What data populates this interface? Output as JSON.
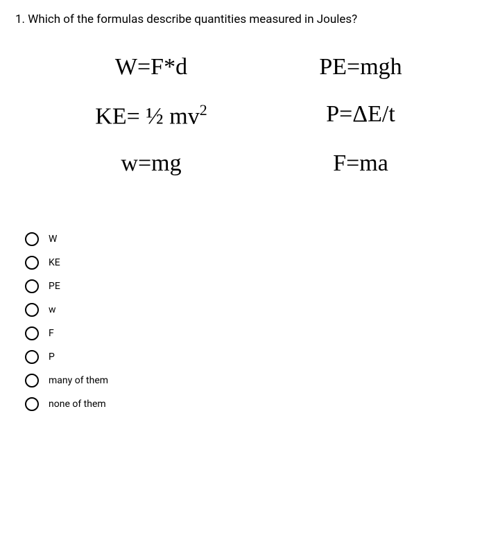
{
  "question": {
    "text": "1. Which of the formulas describe quantities measured in Joules?"
  },
  "formulas": {
    "f1": "W=F*d",
    "f2": "PE=mgh",
    "f3_pre": "KE= ½ mv",
    "f3_sup": "2",
    "f4": "P=ΔE/t",
    "f5": "w=mg",
    "f6": "F=ma"
  },
  "options": [
    {
      "label": "W"
    },
    {
      "label": "KE"
    },
    {
      "label": "PE"
    },
    {
      "label": "w"
    },
    {
      "label": "F"
    },
    {
      "label": "P"
    },
    {
      "label": "many of them"
    },
    {
      "label": "none of them"
    }
  ],
  "styling": {
    "question_fontsize": 17,
    "formula_fontsize": 34,
    "formula_font": "Times New Roman",
    "option_fontsize": 14,
    "radio_size": 20,
    "radio_border_color": "#000000",
    "background_color": "#ffffff",
    "text_color": "#000000"
  }
}
